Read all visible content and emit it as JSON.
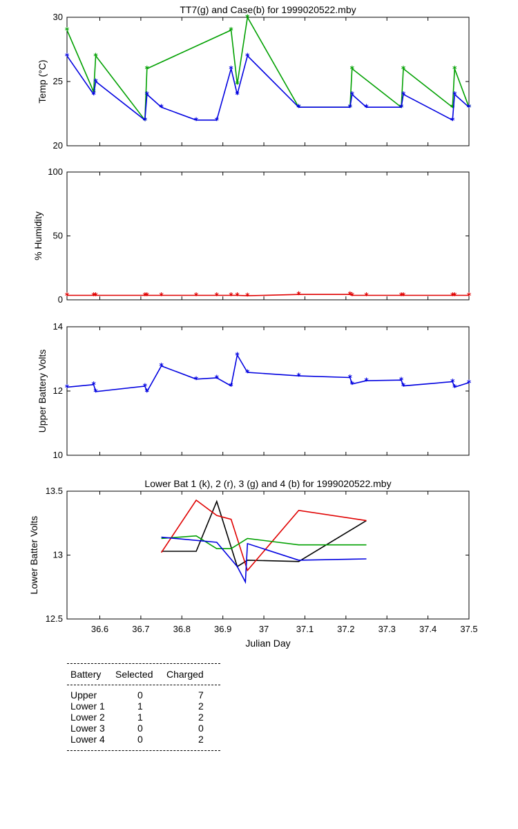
{
  "chart_data": [
    {
      "type": "line",
      "title": "TT7(g) and Case(b) for 1999020522.mby",
      "xlabel": "",
      "ylabel": "Temp  (°C)",
      "xlim": [
        36.52,
        37.5
      ],
      "ylim": [
        20,
        30
      ],
      "yticks": [
        20,
        25,
        30
      ],
      "grid": false,
      "series": [
        {
          "color": "#00a000",
          "x": [
            36.52,
            36.585,
            36.59,
            36.71,
            36.715,
            36.92,
            36.935,
            36.96,
            37.085,
            37.21,
            37.215,
            37.335,
            37.34,
            37.46,
            37.465,
            37.5
          ],
          "y": [
            29,
            24.2,
            27,
            22,
            26,
            29,
            24.8,
            30,
            23,
            23,
            26,
            23,
            26,
            23,
            26,
            23
          ]
        },
        {
          "color": "#0000e0",
          "x": [
            36.52,
            36.585,
            36.59,
            36.71,
            36.715,
            36.75,
            36.835,
            36.885,
            36.92,
            36.935,
            36.96,
            37.085,
            37.21,
            37.215,
            37.25,
            37.335,
            37.34,
            37.46,
            37.465,
            37.5
          ],
          "y": [
            27,
            24,
            25,
            22,
            24,
            23,
            22,
            22,
            26,
            24,
            27,
            23,
            23,
            24,
            23,
            23,
            24,
            22,
            24,
            23
          ]
        }
      ]
    },
    {
      "type": "line",
      "title": "",
      "xlabel": "",
      "ylabel": "% Humidity",
      "xlim": [
        36.52,
        37.5
      ],
      "ylim": [
        0,
        100
      ],
      "yticks": [
        0,
        50,
        100
      ],
      "grid": false,
      "series": [
        {
          "color": "#e00000",
          "x": [
            36.52,
            36.585,
            36.59,
            36.71,
            36.715,
            36.75,
            36.835,
            36.885,
            36.92,
            36.935,
            36.96,
            37.085,
            37.21,
            37.215,
            37.25,
            37.335,
            37.34,
            37.46,
            37.465,
            37.5
          ],
          "y": [
            3.5,
            3.5,
            3.5,
            3.5,
            3.5,
            3.5,
            3.5,
            3.5,
            3.5,
            3.5,
            3.2,
            4.2,
            4.2,
            3.5,
            3.5,
            3.5,
            3.5,
            3.5,
            3.5,
            3.5
          ]
        }
      ]
    },
    {
      "type": "line",
      "title": "",
      "xlabel": "",
      "ylabel": "Upper Battery Volts",
      "xlim": [
        36.52,
        37.5
      ],
      "ylim": [
        10,
        14
      ],
      "yticks": [
        10,
        12,
        14
      ],
      "grid": false,
      "series": [
        {
          "color": "#0000e0",
          "x": [
            36.52,
            36.585,
            36.59,
            36.71,
            36.715,
            36.75,
            36.835,
            36.885,
            36.92,
            36.935,
            36.96,
            37.085,
            37.21,
            37.215,
            37.25,
            37.335,
            37.34,
            37.46,
            37.465,
            37.5
          ],
          "y": [
            12.12,
            12.2,
            11.98,
            12.15,
            11.98,
            12.78,
            12.37,
            12.41,
            12.16,
            13.12,
            12.58,
            12.47,
            12.42,
            12.22,
            12.32,
            12.34,
            12.16,
            12.29,
            12.12,
            12.26
          ]
        }
      ]
    },
    {
      "type": "line",
      "title": "Lower Bat 1 (k), 2 (r), 3 (g) and 4 (b) for 1999020522.mby",
      "xlabel": "Julian Day",
      "ylabel": "Lower Batter Volts",
      "xlim": [
        36.52,
        37.5
      ],
      "ylim": [
        12.5,
        13.5
      ],
      "yticks": [
        12.5,
        13,
        13.5
      ],
      "xticks": [
        36.6,
        36.7,
        36.8,
        36.9,
        37,
        37.1,
        37.2,
        37.3,
        37.4,
        37.5
      ],
      "grid": false,
      "series": [
        {
          "color": "#000000",
          "x": [
            36.75,
            36.835,
            36.885,
            36.935,
            36.96,
            37.085,
            37.25
          ],
          "y": [
            13.03,
            13.03,
            13.42,
            12.91,
            12.96,
            12.95,
            13.27
          ]
        },
        {
          "color": "#e00000",
          "x": [
            36.75,
            36.835,
            36.885,
            36.92,
            36.96,
            37.085,
            37.25
          ],
          "y": [
            13.02,
            13.43,
            13.31,
            13.28,
            12.88,
            13.35,
            13.27
          ]
        },
        {
          "color": "#00a000",
          "x": [
            36.75,
            36.835,
            36.885,
            36.92,
            36.96,
            37.085,
            37.25
          ],
          "y": [
            13.13,
            13.15,
            13.05,
            13.05,
            13.13,
            13.08,
            13.08
          ]
        },
        {
          "color": "#0000e0",
          "x": [
            36.75,
            36.885,
            36.935,
            36.955,
            36.96,
            37.085,
            37.25
          ],
          "y": [
            13.14,
            13.1,
            12.91,
            12.79,
            13.09,
            12.96,
            12.97
          ]
        }
      ]
    }
  ],
  "battery_table": {
    "headers": [
      "Battery",
      "Selected",
      "Charged"
    ],
    "rows": [
      [
        "Upper",
        "0",
        "7"
      ],
      [
        "Lower 1",
        "1",
        "2"
      ],
      [
        "Lower 2",
        "1",
        "2"
      ],
      [
        "Lower 3",
        "0",
        "0"
      ],
      [
        "Lower 4",
        "0",
        "2"
      ]
    ]
  }
}
